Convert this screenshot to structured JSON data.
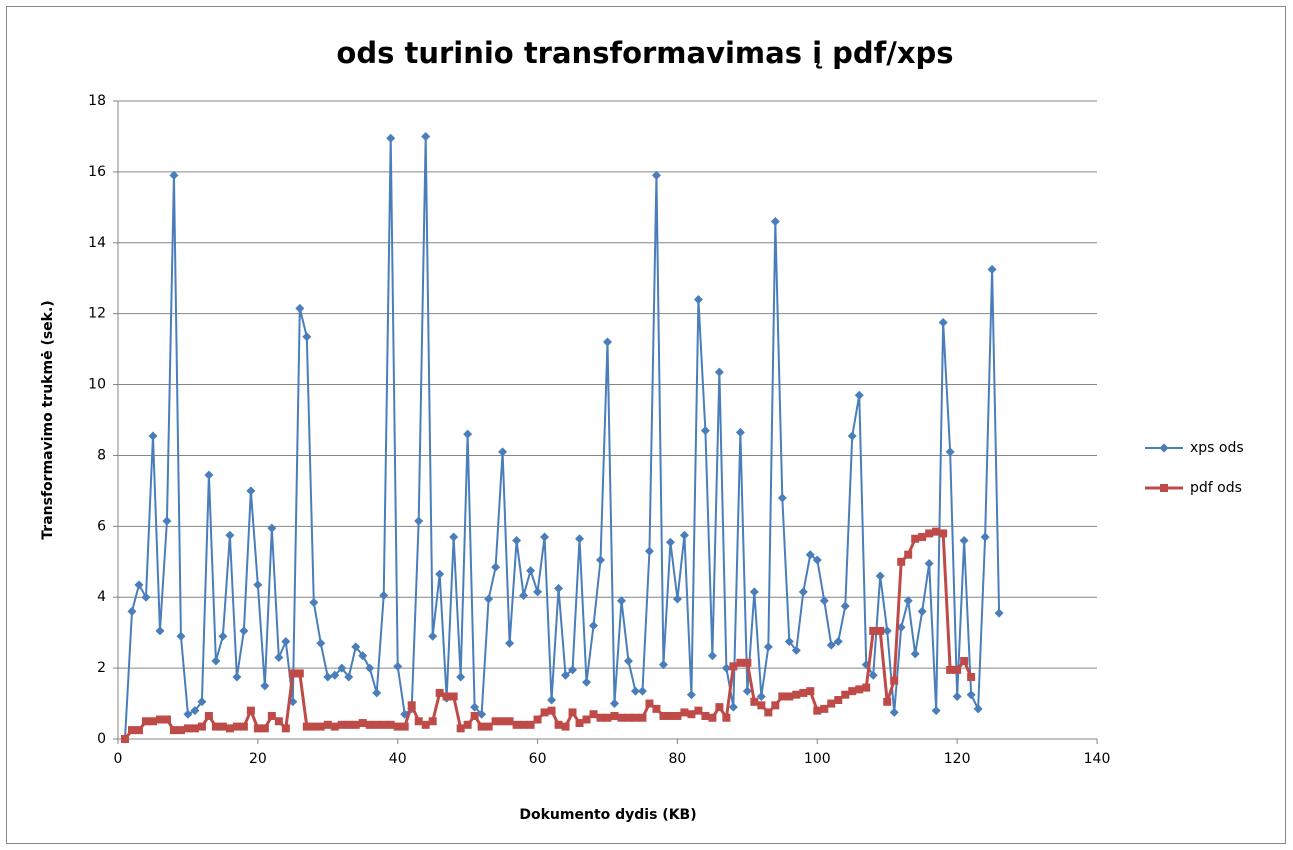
{
  "chart_data": {
    "type": "line",
    "title": "ods turinio transformavimas į pdf/xps",
    "xlabel": "Dokumento dydis (KB)",
    "ylabel": "Transformavimo trukmė (sek.)",
    "xlim": [
      0,
      140
    ],
    "xticks": [
      0,
      20,
      40,
      60,
      80,
      100,
      120,
      140
    ],
    "ylim": [
      0,
      18
    ],
    "yticks": [
      0,
      2,
      4,
      6,
      8,
      10,
      12,
      14,
      16,
      18
    ],
    "grid": true,
    "legend": "right",
    "series": [
      {
        "name": "xps ods",
        "color": "#4a7ebb",
        "marker": "diamond",
        "x": [
          1,
          2,
          3,
          4,
          5,
          6,
          7,
          8,
          9,
          10,
          11,
          12,
          13,
          14,
          15,
          16,
          17,
          18,
          19,
          20,
          21,
          22,
          23,
          24,
          25,
          26,
          27,
          28,
          29,
          30,
          31,
          32,
          33,
          34,
          35,
          36,
          37,
          38,
          39,
          40,
          41,
          42,
          43,
          44,
          45,
          46,
          47,
          48,
          49,
          50,
          51,
          52,
          53,
          54,
          55,
          56,
          57,
          58,
          59,
          60,
          61,
          62,
          63,
          64,
          65,
          66,
          67,
          68,
          69,
          70,
          71,
          72,
          73,
          74,
          75,
          76,
          77,
          78,
          79,
          80,
          81,
          82,
          83,
          84,
          85,
          86,
          87,
          88,
          89,
          90,
          91,
          92,
          93,
          94,
          95,
          96,
          97,
          98,
          99,
          100,
          101,
          102,
          103,
          104,
          105,
          106,
          107,
          108,
          109,
          110,
          111,
          112,
          113,
          114,
          115,
          116,
          117,
          118,
          119,
          120,
          121,
          122,
          123,
          124,
          125,
          126
        ],
        "values": [
          0,
          3.6,
          4.35,
          4.0,
          8.55,
          3.05,
          6.15,
          15.9,
          2.9,
          0.7,
          0.8,
          1.05,
          7.45,
          2.2,
          2.9,
          5.75,
          1.75,
          3.05,
          7.0,
          4.35,
          1.5,
          5.95,
          2.3,
          2.75,
          1.05,
          12.15,
          11.35,
          3.85,
          2.7,
          1.75,
          1.8,
          2.0,
          1.75,
          2.6,
          2.35,
          2.0,
          1.3,
          4.05,
          16.95,
          2.05,
          0.7,
          0.85,
          6.15,
          17.0,
          2.9,
          4.65,
          1.15,
          5.7,
          1.75,
          8.6,
          0.9,
          0.7,
          3.95,
          4.85,
          8.1,
          2.7,
          5.6,
          4.05,
          4.75,
          4.15,
          5.7,
          1.1,
          4.25,
          1.8,
          1.95,
          5.65,
          1.6,
          3.2,
          5.05,
          11.2,
          1.0,
          3.9,
          2.2,
          1.35,
          1.35,
          5.3,
          15.9,
          2.1,
          5.55,
          3.95,
          5.75,
          1.25,
          12.4,
          8.7,
          2.35,
          10.35,
          2.0,
          0.9,
          8.65,
          1.35,
          4.15,
          1.2,
          2.6,
          14.6,
          6.8,
          2.75,
          2.5,
          4.15,
          5.2,
          5.05,
          3.9,
          2.65,
          2.75,
          3.75,
          8.55,
          9.7,
          2.1,
          1.8,
          4.6,
          3.05,
          0.75,
          3.15,
          3.9,
          2.4,
          3.6,
          4.95,
          0.8,
          11.75,
          8.1,
          1.2,
          5.6,
          1.25,
          0.85,
          5.7,
          13.25,
          3.55
        ]
      },
      {
        "name": "pdf ods",
        "color": "#be4b48",
        "marker": "square",
        "x": [
          1,
          2,
          3,
          4,
          5,
          6,
          7,
          8,
          9,
          10,
          11,
          12,
          13,
          14,
          15,
          16,
          17,
          18,
          19,
          20,
          21,
          22,
          23,
          24,
          25,
          26,
          27,
          28,
          29,
          30,
          31,
          32,
          33,
          34,
          35,
          36,
          37,
          38,
          39,
          40,
          41,
          42,
          43,
          44,
          45,
          46,
          47,
          48,
          49,
          50,
          51,
          52,
          53,
          54,
          55,
          56,
          57,
          58,
          59,
          60,
          61,
          62,
          63,
          64,
          65,
          66,
          67,
          68,
          69,
          70,
          71,
          72,
          73,
          74,
          75,
          76,
          77,
          78,
          79,
          80,
          81,
          82,
          83,
          84,
          85,
          86,
          87,
          88,
          89,
          90,
          91,
          92,
          93,
          94,
          95,
          96,
          97,
          98,
          99,
          100,
          101,
          102,
          103,
          104,
          105,
          106,
          107,
          108,
          109,
          110,
          111,
          112,
          113,
          114,
          115,
          116,
          117,
          118,
          119,
          120,
          121,
          122
        ],
        "values": [
          0,
          0.25,
          0.25,
          0.5,
          0.5,
          0.55,
          0.55,
          0.25,
          0.25,
          0.3,
          0.3,
          0.35,
          0.65,
          0.35,
          0.35,
          0.3,
          0.35,
          0.35,
          0.8,
          0.3,
          0.3,
          0.65,
          0.5,
          0.3,
          1.85,
          1.85,
          0.35,
          0.35,
          0.35,
          0.4,
          0.35,
          0.4,
          0.4,
          0.4,
          0.45,
          0.4,
          0.4,
          0.4,
          0.4,
          0.35,
          0.35,
          0.95,
          0.5,
          0.4,
          0.5,
          1.3,
          1.2,
          1.2,
          0.3,
          0.4,
          0.65,
          0.35,
          0.35,
          0.5,
          0.5,
          0.5,
          0.4,
          0.4,
          0.4,
          0.55,
          0.75,
          0.8,
          0.4,
          0.35,
          0.75,
          0.45,
          0.55,
          0.7,
          0.6,
          0.6,
          0.65,
          0.6,
          0.6,
          0.6,
          0.6,
          1.0,
          0.85,
          0.65,
          0.65,
          0.65,
          0.75,
          0.7,
          0.8,
          0.65,
          0.6,
          0.9,
          0.6,
          2.05,
          2.15,
          2.15,
          1.05,
          0.95,
          0.75,
          0.95,
          1.2,
          1.2,
          1.25,
          1.3,
          1.35,
          0.8,
          0.85,
          1.0,
          1.1,
          1.25,
          1.35,
          1.4,
          1.45,
          3.05,
          3.05,
          1.05,
          1.65,
          5.0,
          5.2,
          5.65,
          5.7,
          5.8,
          5.85,
          5.8,
          1.95,
          1.95,
          2.2,
          1.75
        ]
      }
    ]
  }
}
